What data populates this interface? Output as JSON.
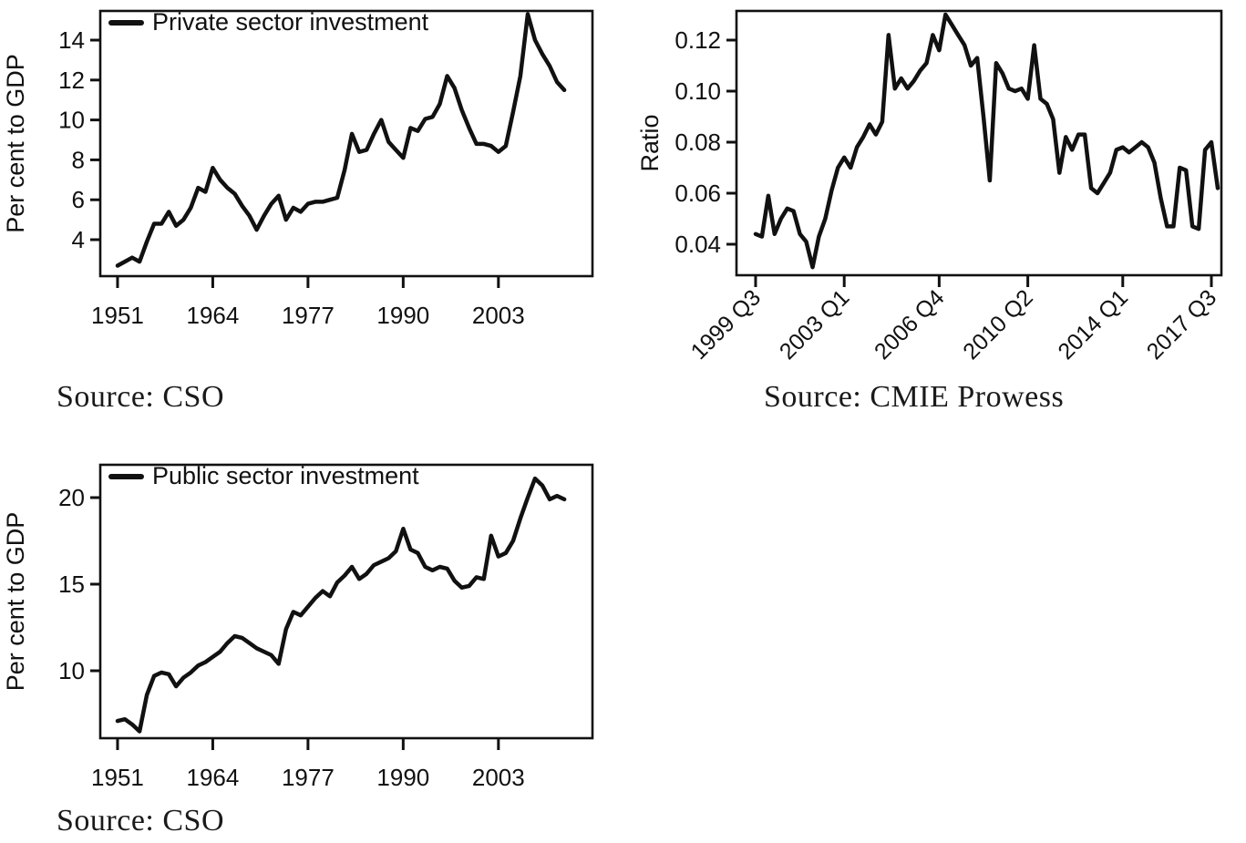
{
  "chart_data": [
    {
      "id": "private-sector",
      "type": "line",
      "legend": "Private sector investment",
      "ylabel": "Per cent to GDP",
      "xlabel": "",
      "source": "Source: CSO",
      "frequency": "annual",
      "x_start": 1951,
      "x_end": 2012,
      "xticks": [
        1951,
        1964,
        1977,
        1990,
        2003
      ],
      "yticks": [
        4,
        6,
        8,
        10,
        12,
        14
      ],
      "ylim": [
        2.2,
        15.5
      ],
      "grid": false,
      "legend_position": "top-left-inside",
      "values": [
        2.7,
        2.9,
        3.1,
        2.9,
        3.9,
        4.8,
        4.8,
        5.4,
        4.7,
        5.0,
        5.6,
        6.6,
        6.4,
        7.6,
        7.0,
        6.6,
        6.3,
        5.7,
        5.2,
        4.5,
        5.2,
        5.8,
        6.2,
        5.0,
        5.6,
        5.4,
        5.8,
        5.9,
        5.9,
        6.0,
        6.1,
        7.5,
        9.3,
        8.4,
        8.5,
        9.3,
        10.0,
        8.9,
        8.5,
        8.1,
        9.6,
        9.45,
        10.05,
        10.15,
        10.8,
        12.2,
        11.6,
        10.5,
        9.6,
        8.8,
        8.8,
        8.7,
        8.4,
        8.7,
        10.4,
        12.2,
        15.3,
        14.0,
        13.3,
        12.7,
        11.9,
        11.5
      ]
    },
    {
      "id": "investment-ratio",
      "type": "line",
      "legend": null,
      "ylabel": "Ratio",
      "xlabel": "",
      "source": "Source: CMIE Prowess",
      "frequency": "quarterly",
      "x_start": "1999 Q3",
      "x_end": "2017 Q4",
      "xtick_labels": [
        "1999 Q3",
        "2003 Q1",
        "2006 Q4",
        "2010 Q2",
        "2014 Q1",
        "2017 Q3"
      ],
      "xtick_positions": [
        0,
        14,
        29,
        43,
        58,
        72
      ],
      "ytick_labels": [
        "0.04",
        "0.06",
        "0.08",
        "0.10",
        "0.12"
      ],
      "yticks": [
        0.04,
        0.06,
        0.08,
        0.1,
        0.12
      ],
      "ylim": [
        0.028,
        0.131
      ],
      "grid": false,
      "values": [
        0.044,
        0.043,
        0.059,
        0.044,
        0.05,
        0.054,
        0.053,
        0.044,
        0.041,
        0.031,
        0.043,
        0.05,
        0.061,
        0.07,
        0.074,
        0.07,
        0.078,
        0.082,
        0.087,
        0.083,
        0.088,
        0.122,
        0.101,
        0.105,
        0.101,
        0.104,
        0.108,
        0.111,
        0.122,
        0.116,
        0.13,
        0.126,
        0.122,
        0.118,
        0.11,
        0.113,
        0.09,
        0.065,
        0.111,
        0.107,
        0.101,
        0.1,
        0.101,
        0.097,
        0.118,
        0.097,
        0.095,
        0.089,
        0.068,
        0.082,
        0.077,
        0.083,
        0.083,
        0.062,
        0.06,
        0.064,
        0.068,
        0.077,
        0.078,
        0.076,
        0.078,
        0.08,
        0.078,
        0.072,
        0.058,
        0.047,
        0.047,
        0.07,
        0.069,
        0.047,
        0.046,
        0.077,
        0.08,
        0.062
      ]
    },
    {
      "id": "public-sector",
      "type": "line",
      "legend": "Public sector investment",
      "ylabel": "Per cent to GDP",
      "xlabel": "",
      "source": "Source: CSO",
      "frequency": "annual",
      "x_start": 1951,
      "x_end": 2012,
      "xticks": [
        1951,
        1964,
        1977,
        1990,
        2003
      ],
      "yticks": [
        10,
        15,
        20
      ],
      "ylim": [
        6.1,
        21.9
      ],
      "grid": false,
      "legend_position": "top-left-inside",
      "values": [
        7.1,
        7.2,
        6.9,
        6.5,
        8.6,
        9.7,
        9.9,
        9.8,
        9.1,
        9.6,
        9.9,
        10.3,
        10.5,
        10.8,
        11.1,
        11.6,
        12.0,
        11.9,
        11.6,
        11.3,
        11.1,
        10.9,
        10.4,
        12.4,
        13.4,
        13.2,
        13.7,
        14.2,
        14.6,
        14.3,
        15.1,
        15.5,
        16.0,
        15.3,
        15.6,
        16.1,
        16.3,
        16.5,
        16.9,
        18.2,
        17.0,
        16.8,
        16.0,
        15.8,
        16.0,
        15.9,
        15.2,
        14.8,
        14.9,
        15.4,
        15.3,
        17.8,
        16.6,
        16.8,
        17.5,
        18.8,
        20.0,
        21.1,
        20.7,
        19.9,
        20.1,
        19.9
      ]
    }
  ],
  "style": {
    "line_color": "#111111",
    "axis_color": "#111111",
    "background": "#ffffff"
  }
}
